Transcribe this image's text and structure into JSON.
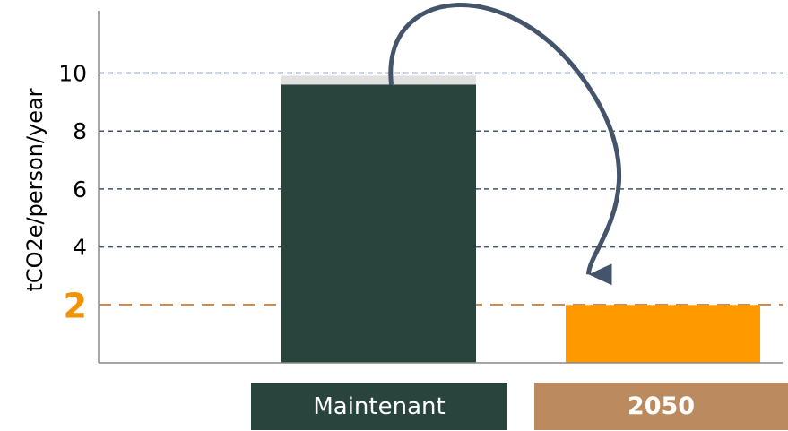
{
  "chart_data": {
    "type": "bar",
    "ylabel": "tCO2e/person/year",
    "ylim": [
      0,
      12
    ],
    "yticks": [
      4,
      6,
      8,
      10
    ],
    "grid": true,
    "categories": [
      "Maintenant",
      "2050"
    ],
    "values": [
      9.6,
      2.0
    ],
    "target_line": {
      "value": 2,
      "label": "2",
      "color": "#f39200"
    },
    "bar_colors": [
      "#29443d",
      "#ff9900"
    ],
    "category_box_colors": [
      "#29443d",
      "#bb8a5e"
    ],
    "arrow": {
      "from": "Maintenant",
      "to": "2050",
      "color": "#44546a"
    }
  }
}
